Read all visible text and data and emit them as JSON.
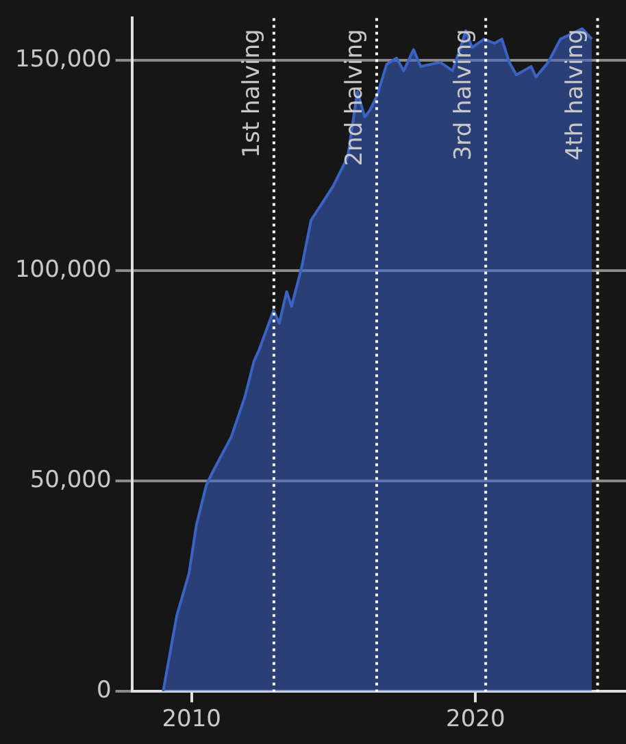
{
  "chart_data": {
    "type": "area",
    "x": [
      2009.0,
      2009.48,
      2009.91,
      2010.17,
      2010.52,
      2010.77,
      2011.4,
      2011.88,
      2012.2,
      2012.37,
      2012.89,
      2013.09,
      2013.35,
      2013.52,
      2013.87,
      2014.21,
      2014.55,
      2014.98,
      2015.5,
      2015.84,
      2016.1,
      2016.27,
      2016.53,
      2016.87,
      2017.22,
      2017.47,
      2017.82,
      2018.07,
      2018.76,
      2019.19,
      2019.45,
      2019.66,
      2019.88,
      2020.3,
      2020.67,
      2020.93,
      2021.19,
      2021.44,
      2021.96,
      2022.13,
      2022.56,
      2022.99,
      2023.76,
      2024.1
    ],
    "series": [
      {
        "color": "#3a63c4",
        "values": [
          0,
          18000,
          28000,
          39500,
          49000,
          52500,
          60500,
          70000,
          78500,
          81000,
          90500,
          87500,
          95000,
          91500,
          100500,
          112000,
          115500,
          120000,
          127000,
          142500,
          136500,
          138000,
          141500,
          149000,
          150500,
          147500,
          152500,
          148500,
          149500,
          147500,
          152500,
          157000,
          153000,
          155000,
          154000,
          155000,
          149500,
          146500,
          148500,
          146000,
          149500,
          155000,
          157500,
          155000
        ]
      }
    ],
    "xlim": [
      2007.9,
      2025.3
    ],
    "xticks": [
      2010,
      2020
    ],
    "ylim": [
      0,
      160000
    ],
    "yticks": [
      {
        "value": 0,
        "label": "0"
      },
      {
        "value": 50000,
        "label": "50,000"
      },
      {
        "value": 100000,
        "label": "100,000"
      },
      {
        "value": 150000,
        "label": "150,000"
      }
    ],
    "grid": "y",
    "ref_lines": [
      {
        "axis": "x",
        "value": 2012.9,
        "label": "1st halving",
        "color": "#ffffff",
        "line_style": "dotted"
      },
      {
        "axis": "x",
        "value": 2016.52,
        "label": "2nd halving",
        "color": "#ffffff",
        "line_style": "dotted"
      },
      {
        "axis": "x",
        "value": 2020.36,
        "label": "3rd halving",
        "color": "#ffffff",
        "line_style": "dotted"
      },
      {
        "axis": "x",
        "value": 2024.3,
        "label": "4th halving",
        "color": "#ffffff",
        "line_style": "dotted"
      }
    ]
  }
}
